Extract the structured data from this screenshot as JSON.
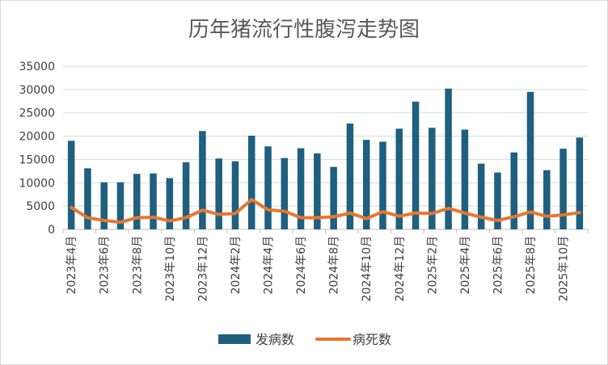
{
  "chart_data": {
    "type": "bar+line",
    "title": "历年猪流行性腹泻走势图",
    "xlabel": "",
    "ylabel": "",
    "ylim": [
      0,
      35000
    ],
    "y_ticks": [
      "35000",
      "30000",
      "25000",
      "20000",
      "15000",
      "10000",
      "5000",
      "0"
    ],
    "y_tick_values": [
      35000,
      30000,
      25000,
      20000,
      15000,
      10000,
      5000,
      0
    ],
    "categories": [
      "2023年4月",
      "2023年5月",
      "2023年6月",
      "2023年7月",
      "2023年8月",
      "2023年9月",
      "2023年10月",
      "2023年11月",
      "2023年12月",
      "2024年1月",
      "2024年2月",
      "2024年3月",
      "2024年4月",
      "2024年5月",
      "2024年6月",
      "2024年7月",
      "2024年8月",
      "2024年9月",
      "2024年10月",
      "2024年11月",
      "2024年12月",
      "2025年1月",
      "2025年2月",
      "2025年3月",
      "2025年4月",
      "2025年5月",
      "2025年6月",
      "2025年7月",
      "2025年8月",
      "2025年9月",
      "2025年10月",
      "2025年11月"
    ],
    "x_tick_labels": [
      "2023年4月",
      "2023年6月",
      "2023年8月",
      "2023年10月",
      "2023年12月",
      "2024年2月",
      "2024年4月",
      "2024年6月",
      "2024年8月",
      "2024年10月",
      "2024年12月",
      "2025年2月",
      "2025年4月",
      "2025年6月",
      "2025年8月",
      "2025年10月"
    ],
    "series": [
      {
        "name": "发病数",
        "kind": "bar",
        "color": "#1f5f7f",
        "values": [
          19000,
          13100,
          10100,
          10100,
          11900,
          12000,
          11000,
          14400,
          21100,
          15200,
          14600,
          20100,
          17800,
          15300,
          17400,
          16300,
          13400,
          22700,
          19200,
          18800,
          21600,
          27400,
          21800,
          30200,
          21400,
          14100,
          12200,
          16500,
          29500,
          12700,
          17300,
          19700
        ]
      },
      {
        "name": "病死数",
        "kind": "line",
        "color": "#e8772e",
        "values": [
          4700,
          2500,
          1900,
          1500,
          2500,
          2600,
          1800,
          2500,
          4100,
          3200,
          3400,
          6400,
          4200,
          3900,
          2500,
          2500,
          2700,
          3500,
          2300,
          3800,
          2800,
          3500,
          3400,
          4500,
          3500,
          2600,
          1900,
          2700,
          3700,
          2800,
          3100,
          3600
        ]
      }
    ],
    "legend": {
      "position": "bottom"
    }
  }
}
